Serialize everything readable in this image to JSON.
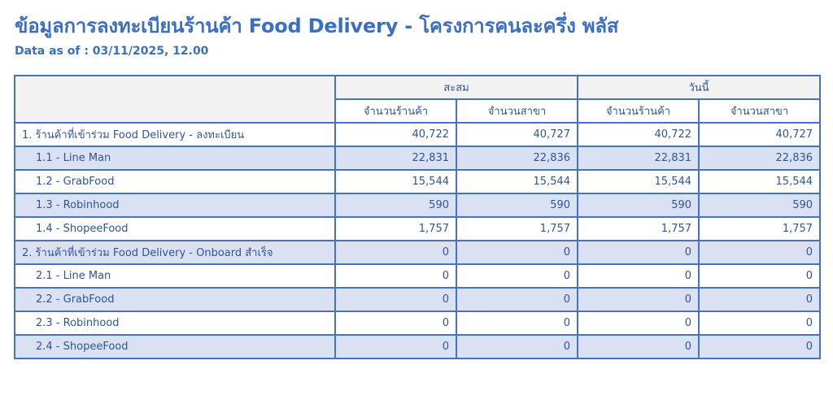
{
  "header": {
    "title": "ข้อมูลการลงทะเบียนร้านค้า Food Delivery - โครงการคนละครึ่ง พลัส",
    "data_as_of": "Data as of : 03/11/2025, 12.00"
  },
  "table": {
    "groups": [
      "สะสม",
      "วันนี้"
    ],
    "subcolumns": [
      "จำนวนร้านค้า",
      "จำนวนสาขา",
      "จำนวนร้านค้า",
      "จำนวนสาขา"
    ],
    "rows": [
      {
        "label": "1. ร้านค้าที่เข้าร่วม Food Delivery - ลงทะเบียน",
        "level": 0,
        "values": [
          "40,722",
          "40,727",
          "40,722",
          "40,727"
        ]
      },
      {
        "label": "1.1 - Line Man",
        "level": 1,
        "values": [
          "22,831",
          "22,836",
          "22,831",
          "22,836"
        ]
      },
      {
        "label": "1.2 - GrabFood",
        "level": 1,
        "values": [
          "15,544",
          "15,544",
          "15,544",
          "15,544"
        ]
      },
      {
        "label": "1.3 - Robinhood",
        "level": 1,
        "values": [
          "590",
          "590",
          "590",
          "590"
        ]
      },
      {
        "label": "1.4 - ShopeeFood",
        "level": 1,
        "values": [
          "1,757",
          "1,757",
          "1,757",
          "1,757"
        ]
      },
      {
        "label": "2. ร้านค้าที่เข้าร่วม Food Delivery - Onboard สำเร็จ",
        "level": 0,
        "values": [
          "0",
          "0",
          "0",
          "0"
        ]
      },
      {
        "label": "2.1 - Line Man",
        "level": 1,
        "values": [
          "0",
          "0",
          "0",
          "0"
        ]
      },
      {
        "label": "2.2 - GrabFood",
        "level": 1,
        "values": [
          "0",
          "0",
          "0",
          "0"
        ]
      },
      {
        "label": "2.3 - Robinhood",
        "level": 1,
        "values": [
          "0",
          "0",
          "0",
          "0"
        ]
      },
      {
        "label": "2.4 - ShopeeFood",
        "level": 1,
        "values": [
          "0",
          "0",
          "0",
          "0"
        ]
      }
    ]
  },
  "colors": {
    "title": "#3b6fc4",
    "border": "#4472c4",
    "shade": "#d9e1f2",
    "header_bg": "#f2f2f2"
  }
}
